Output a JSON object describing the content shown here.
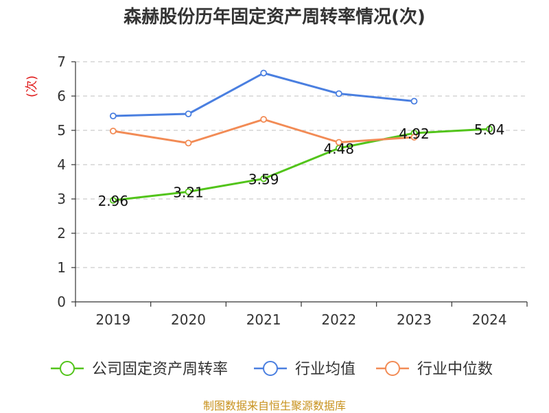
{
  "chart_data": {
    "type": "line",
    "title": "森赫股份历年固定资产周转率情况(次)",
    "ylabel": "(次)",
    "categories": [
      "2019",
      "2020",
      "2021",
      "2022",
      "2023",
      "2024"
    ],
    "ylim": [
      0,
      7
    ],
    "yticks": [
      "0",
      "1",
      "2",
      "3",
      "4",
      "5",
      "6",
      "7"
    ],
    "grid": true,
    "legend_position": "bottom",
    "series": [
      {
        "name": "公司固定资产周转率",
        "color": "#52c41a",
        "values": [
          2.96,
          3.21,
          3.59,
          4.48,
          4.92,
          5.04
        ],
        "labels": [
          "2.96",
          "3.21",
          "3.59",
          "4.48",
          "4.92",
          "5.04"
        ],
        "show_labels": true
      },
      {
        "name": "行业均值",
        "color": "#4a7fe0",
        "values": [
          5.42,
          5.48,
          6.67,
          6.07,
          5.85,
          null
        ],
        "show_labels": false
      },
      {
        "name": "行业中位数",
        "color": "#f28b55",
        "values": [
          4.98,
          4.63,
          5.32,
          4.65,
          4.8,
          null
        ],
        "show_labels": false
      }
    ]
  },
  "footer": {
    "source": "制图数据来自恒生聚源数据库"
  }
}
